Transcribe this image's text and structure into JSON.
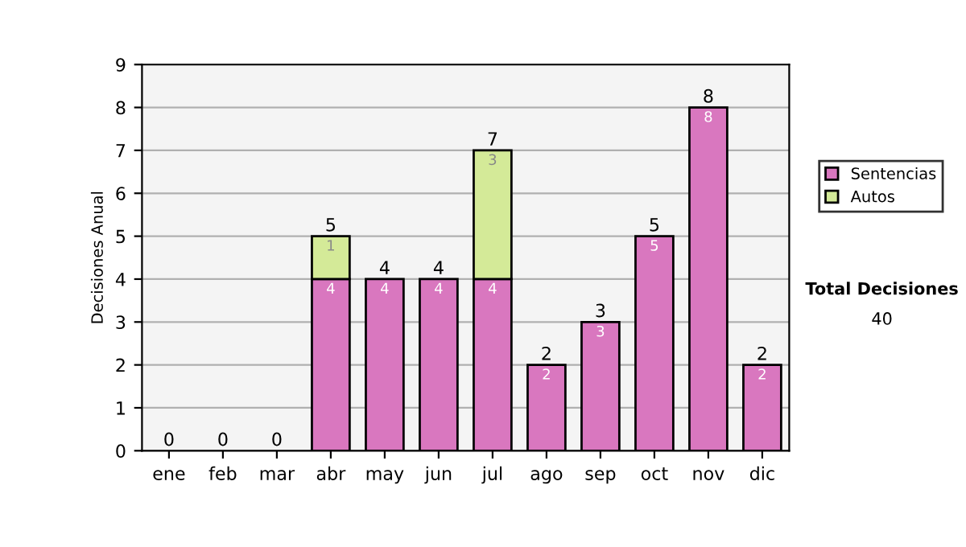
{
  "chart_data": {
    "type": "bar",
    "ylabel": "Decisiones Anual",
    "stacked": true,
    "categories": [
      "ene",
      "feb",
      "mar",
      "abr",
      "may",
      "jun",
      "jul",
      "ago",
      "sep",
      "oct",
      "nov",
      "dic"
    ],
    "series": [
      {
        "name": "Sentencias",
        "color": "#d977bf",
        "values": [
          0,
          0,
          0,
          4,
          4,
          4,
          4,
          2,
          3,
          5,
          8,
          2
        ],
        "value_labels": [
          null,
          null,
          null,
          "4",
          "4",
          "4",
          "4",
          "2",
          "3",
          "5",
          "8",
          "2"
        ]
      },
      {
        "name": "Autos",
        "color": "#d4ea98",
        "values": [
          0,
          0,
          0,
          1,
          0,
          0,
          3,
          0,
          0,
          0,
          0,
          0
        ],
        "value_labels": [
          null,
          null,
          null,
          "1",
          null,
          null,
          "3",
          null,
          null,
          null,
          null,
          null
        ]
      }
    ],
    "totals": [
      "0",
      "0",
      "0",
      "5",
      "4",
      "4",
      "7",
      "2",
      "3",
      "5",
      "8",
      "2"
    ],
    "ylim": [
      0,
      9
    ],
    "yticks": [
      0,
      1,
      2,
      3,
      4,
      5,
      6,
      7,
      8,
      9
    ],
    "grid": "y",
    "legend": "right",
    "annotations": [
      "Total Decisiones",
      "40"
    ]
  }
}
